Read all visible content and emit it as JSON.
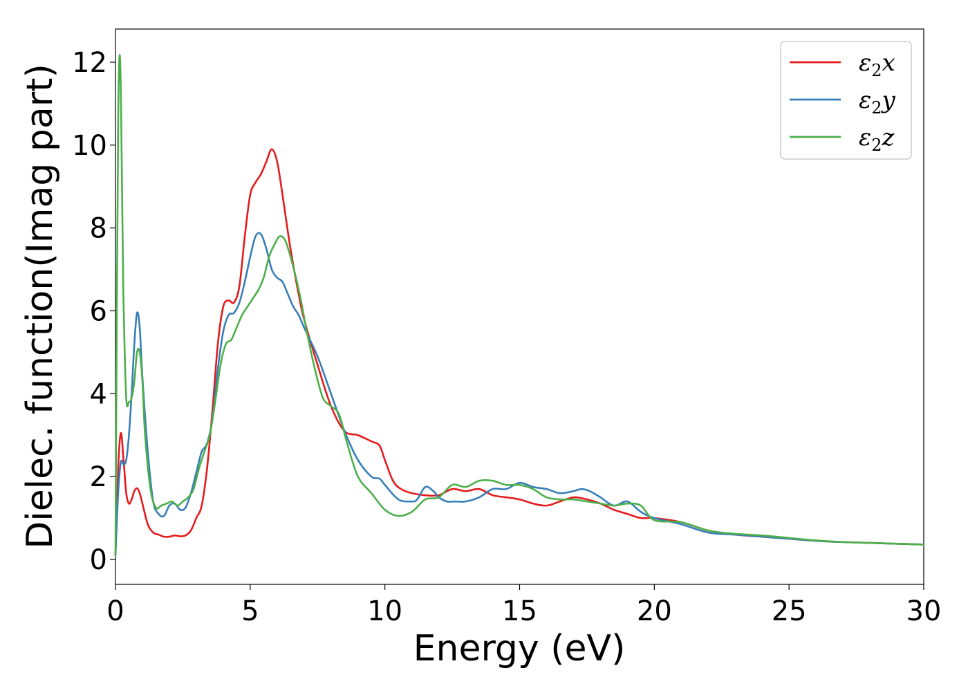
{
  "chart_data": {
    "type": "line",
    "xlabel": "Energy (eV)",
    "ylabel": "Dielec. function(Imag part)",
    "xlim": [
      0,
      30
    ],
    "ylim": [
      -0.6,
      12.8
    ],
    "xticks": [
      "0",
      "5",
      "10",
      "15",
      "20",
      "25",
      "30"
    ],
    "yticks": [
      "0",
      "2",
      "4",
      "6",
      "8",
      "10",
      "12"
    ],
    "grid": false,
    "legend_position": "top-right",
    "series": [
      {
        "name": "ε2x",
        "base": "ε",
        "sub": "2",
        "suffix": "x",
        "color": "#e41a1c",
        "x": [
          0,
          0.1,
          0.2,
          0.3,
          0.4,
          0.5,
          0.6,
          0.7,
          0.8,
          0.9,
          1.0,
          1.2,
          1.4,
          1.6,
          1.8,
          2.0,
          2.2,
          2.4,
          2.6,
          2.8,
          3.0,
          3.2,
          3.4,
          3.6,
          3.8,
          4.0,
          4.2,
          4.4,
          4.6,
          4.8,
          5.0,
          5.2,
          5.4,
          5.6,
          5.8,
          6.0,
          6.2,
          6.4,
          6.6,
          6.8,
          7.0,
          7.5,
          8.0,
          8.5,
          9.0,
          9.5,
          9.8,
          10.0,
          10.3,
          10.6,
          11.0,
          11.5,
          12.0,
          12.5,
          13.0,
          13.5,
          14.0,
          14.5,
          15.0,
          15.5,
          16.0,
          16.5,
          17.0,
          17.5,
          18.0,
          18.5,
          19.0,
          19.5,
          20.0,
          21.0,
          22.0,
          23.0,
          24.0,
          25.0,
          26.0,
          27.0,
          28.0,
          29.0,
          30.0
        ],
        "y": [
          0.1,
          2.2,
          3.05,
          2.4,
          1.6,
          1.35,
          1.45,
          1.65,
          1.72,
          1.6,
          1.35,
          0.85,
          0.65,
          0.6,
          0.55,
          0.55,
          0.58,
          0.56,
          0.58,
          0.7,
          1.0,
          1.3,
          2.2,
          3.6,
          5.2,
          6.1,
          6.25,
          6.2,
          6.6,
          7.8,
          8.8,
          9.1,
          9.3,
          9.6,
          9.9,
          9.6,
          8.8,
          7.9,
          7.1,
          6.4,
          5.8,
          4.7,
          3.7,
          3.1,
          3.0,
          2.85,
          2.75,
          2.4,
          1.9,
          1.7,
          1.6,
          1.55,
          1.55,
          1.7,
          1.65,
          1.7,
          1.55,
          1.5,
          1.45,
          1.35,
          1.3,
          1.4,
          1.5,
          1.45,
          1.35,
          1.2,
          1.1,
          1.0,
          1.0,
          0.9,
          0.7,
          0.6,
          0.55,
          0.5,
          0.45,
          0.42,
          0.4,
          0.38,
          0.36
        ]
      },
      {
        "name": "ε2y",
        "base": "ε",
        "sub": "2",
        "suffix": "y",
        "color": "#377eb8",
        "x": [
          0,
          0.1,
          0.2,
          0.3,
          0.4,
          0.5,
          0.6,
          0.7,
          0.8,
          0.9,
          1.0,
          1.2,
          1.4,
          1.6,
          1.8,
          2.0,
          2.2,
          2.4,
          2.6,
          2.8,
          3.0,
          3.2,
          3.4,
          3.6,
          3.8,
          4.0,
          4.2,
          4.4,
          4.6,
          4.8,
          5.0,
          5.2,
          5.4,
          5.6,
          5.8,
          6.0,
          6.2,
          6.4,
          6.6,
          6.8,
          7.0,
          7.5,
          8.0,
          8.5,
          9.0,
          9.5,
          9.8,
          10.0,
          10.5,
          11.0,
          11.2,
          11.5,
          11.8,
          12.0,
          12.3,
          12.6,
          13.0,
          13.5,
          14.0,
          14.5,
          15.0,
          15.5,
          16.0,
          16.5,
          17.0,
          17.3,
          17.6,
          18.0,
          18.5,
          19.0,
          19.5,
          20.0,
          21.0,
          22.0,
          23.0,
          24.0,
          25.0,
          26.0,
          27.0,
          28.0,
          29.0,
          30.0
        ],
        "y": [
          0.1,
          1.6,
          2.35,
          2.3,
          2.4,
          3.0,
          4.0,
          5.2,
          5.95,
          5.6,
          4.4,
          2.6,
          1.4,
          1.1,
          1.05,
          1.3,
          1.35,
          1.2,
          1.25,
          1.6,
          2.1,
          2.6,
          2.8,
          3.4,
          4.6,
          5.5,
          5.9,
          5.95,
          6.2,
          6.7,
          7.3,
          7.8,
          7.85,
          7.5,
          7.0,
          6.8,
          6.7,
          6.4,
          6.1,
          5.9,
          5.6,
          4.9,
          4.0,
          3.1,
          2.4,
          2.0,
          1.95,
          1.8,
          1.45,
          1.4,
          1.45,
          1.75,
          1.65,
          1.5,
          1.4,
          1.4,
          1.4,
          1.5,
          1.7,
          1.7,
          1.85,
          1.75,
          1.7,
          1.6,
          1.65,
          1.7,
          1.65,
          1.5,
          1.3,
          1.4,
          1.15,
          1.0,
          0.85,
          0.65,
          0.6,
          0.55,
          0.5,
          0.45,
          0.42,
          0.4,
          0.38,
          0.36
        ]
      },
      {
        "name": "ε2z",
        "base": "ε",
        "sub": "2",
        "suffix": "z",
        "color": "#4daf4a",
        "x": [
          0,
          0.05,
          0.1,
          0.15,
          0.2,
          0.25,
          0.3,
          0.4,
          0.5,
          0.6,
          0.7,
          0.8,
          0.9,
          1.0,
          1.1,
          1.3,
          1.5,
          1.7,
          1.9,
          2.1,
          2.3,
          2.5,
          2.7,
          2.9,
          3.1,
          3.3,
          3.5,
          3.7,
          3.9,
          4.1,
          4.3,
          4.5,
          4.7,
          4.9,
          5.1,
          5.3,
          5.5,
          5.7,
          5.9,
          6.1,
          6.3,
          6.5,
          6.7,
          6.9,
          7.1,
          7.4,
          7.7,
          8.0,
          8.3,
          8.6,
          9.0,
          9.5,
          10.0,
          10.5,
          11.0,
          11.5,
          12.0,
          12.5,
          13.0,
          13.5,
          14.0,
          14.5,
          15.0,
          15.5,
          16.0,
          16.5,
          17.0,
          17.5,
          18.0,
          18.5,
          19.0,
          19.5,
          20.0,
          21.0,
          22.0,
          23.0,
          24.0,
          25.0,
          26.0,
          27.0,
          28.0,
          29.0,
          30.0
        ],
        "y": [
          0.1,
          6.0,
          10.5,
          12.15,
          11.3,
          8.6,
          6.2,
          3.9,
          3.8,
          3.9,
          4.3,
          5.0,
          5.0,
          4.3,
          3.0,
          1.7,
          1.25,
          1.3,
          1.35,
          1.4,
          1.3,
          1.4,
          1.5,
          1.7,
          2.2,
          2.6,
          3.0,
          3.8,
          4.7,
          5.2,
          5.3,
          5.6,
          5.9,
          6.1,
          6.3,
          6.5,
          6.8,
          7.3,
          7.6,
          7.8,
          7.7,
          7.3,
          6.8,
          6.2,
          5.5,
          4.6,
          3.9,
          3.7,
          3.5,
          2.8,
          2.0,
          1.6,
          1.2,
          1.05,
          1.15,
          1.45,
          1.5,
          1.8,
          1.75,
          1.9,
          1.9,
          1.8,
          1.8,
          1.7,
          1.5,
          1.45,
          1.45,
          1.4,
          1.35,
          1.3,
          1.35,
          1.3,
          0.95,
          0.9,
          0.7,
          0.62,
          0.58,
          0.52,
          0.46,
          0.42,
          0.4,
          0.38,
          0.36
        ]
      }
    ]
  }
}
